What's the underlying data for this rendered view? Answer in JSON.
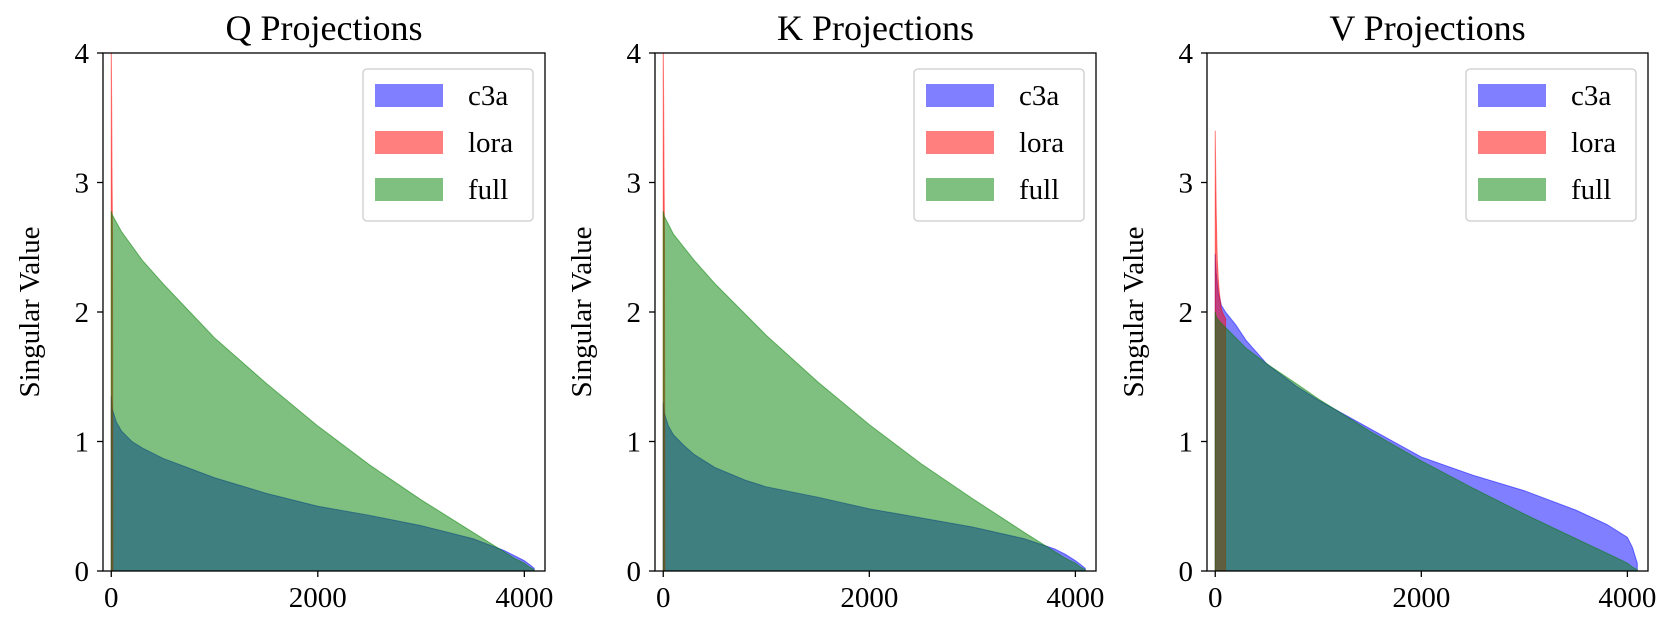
{
  "chart_data": [
    {
      "type": "area",
      "title": "Q Projections",
      "xlabel": "",
      "ylabel": "Singular Value",
      "xlim": [
        -80,
        4200
      ],
      "ylim": [
        0,
        4
      ],
      "xticks": [
        0,
        2000,
        4000
      ],
      "yticks": [
        0,
        1,
        2,
        3,
        4
      ],
      "legend": "top-right",
      "series": [
        {
          "name": "c3a",
          "color": "#0000ff",
          "x": [
            0,
            10,
            50,
            100,
            200,
            300,
            500,
            800,
            1000,
            1500,
            2000,
            2500,
            3000,
            3500,
            3800,
            3900,
            4000,
            4050,
            4096
          ],
          "values": [
            1.35,
            1.25,
            1.15,
            1.08,
            1.0,
            0.95,
            0.87,
            0.78,
            0.72,
            0.6,
            0.5,
            0.43,
            0.35,
            0.25,
            0.16,
            0.12,
            0.08,
            0.05,
            0.02
          ]
        },
        {
          "name": "lora",
          "color": "#ff0000",
          "x": [
            0,
            4,
            8,
            12,
            16
          ],
          "values": [
            4.1,
            3.6,
            3.0,
            2.6,
            0.0
          ]
        },
        {
          "name": "full",
          "color": "#008000",
          "x": [
            0,
            10,
            100,
            300,
            500,
            1000,
            1500,
            2000,
            2500,
            3000,
            3500,
            3900,
            4000,
            4050,
            4096
          ],
          "values": [
            2.78,
            2.75,
            2.62,
            2.4,
            2.22,
            1.8,
            1.45,
            1.12,
            0.82,
            0.55,
            0.3,
            0.1,
            0.06,
            0.03,
            0.01
          ]
        }
      ]
    },
    {
      "type": "area",
      "title": "K Projections",
      "xlabel": "",
      "ylabel": "Singular Value",
      "xlim": [
        -80,
        4200
      ],
      "ylim": [
        0,
        4
      ],
      "xticks": [
        0,
        2000,
        4000
      ],
      "yticks": [
        0,
        1,
        2,
        3,
        4
      ],
      "legend": "top-right",
      "series": [
        {
          "name": "c3a",
          "color": "#0000ff",
          "x": [
            0,
            10,
            50,
            100,
            200,
            300,
            500,
            800,
            1000,
            1500,
            2000,
            2500,
            3000,
            3500,
            3800,
            3900,
            4000,
            4050,
            4096
          ],
          "values": [
            1.3,
            1.22,
            1.12,
            1.05,
            0.97,
            0.9,
            0.8,
            0.7,
            0.65,
            0.57,
            0.48,
            0.41,
            0.34,
            0.25,
            0.17,
            0.13,
            0.08,
            0.05,
            0.02
          ]
        },
        {
          "name": "lora",
          "color": "#ff0000",
          "x": [
            0,
            4,
            8,
            12,
            16
          ],
          "values": [
            4.1,
            3.6,
            3.0,
            2.6,
            0.0
          ]
        },
        {
          "name": "full",
          "color": "#008000",
          "x": [
            0,
            10,
            100,
            300,
            500,
            1000,
            1500,
            2000,
            2500,
            3000,
            3500,
            3900,
            4000,
            4050,
            4096
          ],
          "values": [
            2.78,
            2.74,
            2.6,
            2.4,
            2.22,
            1.82,
            1.46,
            1.13,
            0.83,
            0.56,
            0.3,
            0.1,
            0.06,
            0.03,
            0.01
          ]
        }
      ]
    },
    {
      "type": "area",
      "title": "V Projections",
      "xlabel": "",
      "ylabel": "Singular Value",
      "xlim": [
        -80,
        4200
      ],
      "ylim": [
        0,
        4
      ],
      "xticks": [
        0,
        2000,
        4000
      ],
      "yticks": [
        0,
        1,
        2,
        3,
        4
      ],
      "legend": "top-right",
      "series": [
        {
          "name": "c3a",
          "color": "#0000ff",
          "x": [
            0,
            10,
            30,
            60,
            100,
            200,
            300,
            500,
            800,
            1000,
            1500,
            2000,
            2500,
            3000,
            3500,
            3800,
            4000,
            4050,
            4096
          ],
          "values": [
            2.45,
            2.3,
            2.15,
            2.05,
            2.0,
            1.9,
            1.78,
            1.6,
            1.42,
            1.32,
            1.1,
            0.88,
            0.74,
            0.62,
            0.47,
            0.36,
            0.26,
            0.18,
            0.06
          ]
        },
        {
          "name": "lora",
          "color": "#ff0000",
          "x": [
            0,
            5,
            10,
            15,
            20,
            30,
            40,
            50,
            60,
            80,
            100
          ],
          "values": [
            3.4,
            3.05,
            2.75,
            2.55,
            2.4,
            2.25,
            2.15,
            2.08,
            2.02,
            1.98,
            1.95
          ]
        },
        {
          "name": "full",
          "color": "#008000",
          "x": [
            0,
            10,
            50,
            100,
            200,
            300,
            500,
            800,
            1000,
            1500,
            2000,
            2500,
            3000,
            3500,
            3900,
            4000,
            4050,
            4096
          ],
          "values": [
            2.0,
            1.96,
            1.92,
            1.88,
            1.8,
            1.72,
            1.6,
            1.44,
            1.33,
            1.08,
            0.85,
            0.64,
            0.44,
            0.25,
            0.1,
            0.06,
            0.03,
            0.01
          ]
        }
      ]
    }
  ]
}
